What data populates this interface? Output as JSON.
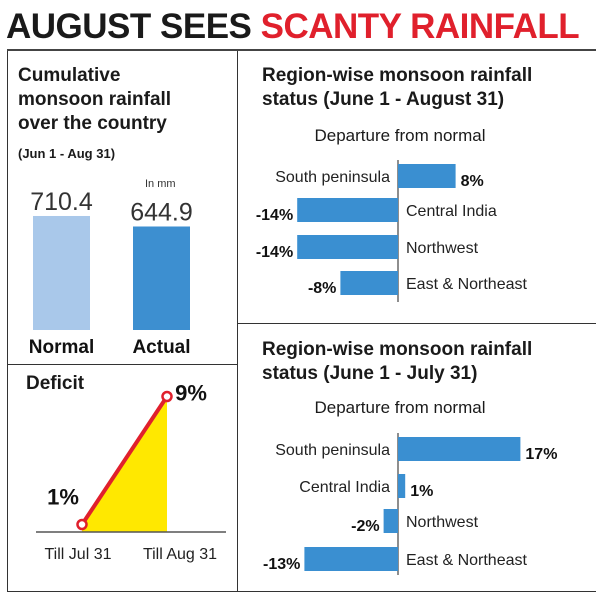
{
  "headline": {
    "part1": "AUGUST SEES",
    "part2": "SCANTY RAINFALL"
  },
  "colors": {
    "accent": "#e0202c",
    "bar_blue": "#3a8fd1",
    "normal_bar": "#a9c8ea",
    "actual_bar": "#3d8fd0",
    "deficit_line": "#e0202c",
    "deficit_fill": "#ffe800"
  },
  "cumulative": {
    "title_lines": [
      "Cumulative",
      "monsoon rainfall",
      "over the country"
    ],
    "subtitle": "(Jun 1 - Aug 31)",
    "unit": "In mm"
  },
  "deficit": {
    "title": "Deficit"
  },
  "region_aug": {
    "title_lines": [
      "Region-wise monsoon rainfall",
      "status (June 1 - August 31)"
    ],
    "departure_label": "Departure from normal"
  },
  "region_jul": {
    "title_lines": [
      "Region-wise monsoon rainfall",
      "status (June 1 - July 31)"
    ],
    "departure_label": "Departure from normal"
  },
  "chart_data": [
    {
      "type": "bar",
      "categories": [
        "Normal",
        "Actual"
      ],
      "values": [
        710.4,
        644.9
      ],
      "title": "Cumulative monsoon rainfall over the country",
      "subtitle": "(Jun 1 - Aug 31)",
      "unit": "In mm"
    },
    {
      "type": "area",
      "categories": [
        "Till Jul 31",
        "Till Aug 31"
      ],
      "values": [
        1,
        9
      ],
      "value_labels": [
        "1%",
        "9%"
      ],
      "title": "Deficit"
    },
    {
      "type": "bar",
      "orientation": "horizontal",
      "title": "Region-wise monsoon rainfall status (June 1 - August 31)",
      "subtitle": "Departure from normal",
      "categories": [
        "South peninsula",
        "Central India",
        "Northwest",
        "East & Northeast"
      ],
      "values": [
        8,
        -14,
        -14,
        -8
      ],
      "value_labels": [
        "8%",
        "-14%",
        "-14%",
        "-8%"
      ]
    },
    {
      "type": "bar",
      "orientation": "horizontal",
      "title": "Region-wise monsoon rainfall status (June 1 - July 31)",
      "subtitle": "Departure from normal",
      "categories": [
        "South peninsula",
        "Central India",
        "Northwest",
        "East & Northeast"
      ],
      "values": [
        17,
        1,
        -2,
        -13
      ],
      "value_labels": [
        "17%",
        "1%",
        "-2%",
        "-13%"
      ]
    }
  ]
}
